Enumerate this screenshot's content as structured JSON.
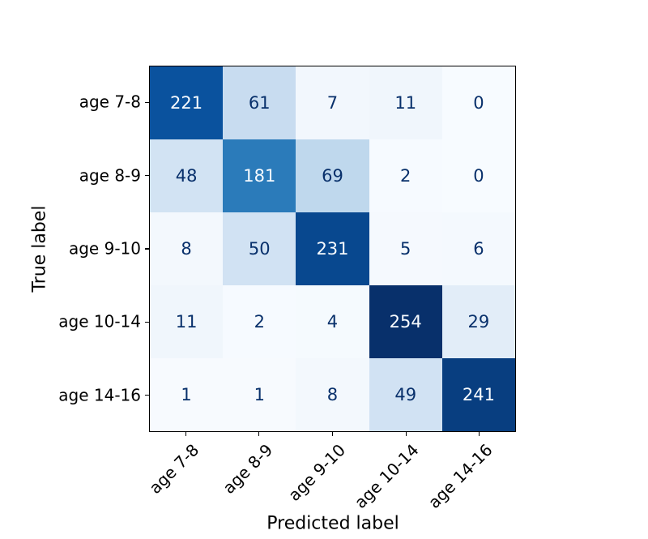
{
  "figure": {
    "background": "#ffffff",
    "border_color": "#000000",
    "tick_color": "#000000"
  },
  "chart_data": {
    "type": "heatmap",
    "subtype": "confusion-matrix",
    "title": "",
    "xlabel": "Predicted label",
    "ylabel": "True label",
    "x_ticklabels": [
      "age 7-8",
      "age 8-9",
      "age 9-10",
      "age 10-14",
      "age 14-16"
    ],
    "y_ticklabels": [
      "age 7-8",
      "age 8-9",
      "age 9-10",
      "age 10-14",
      "age 14-16"
    ],
    "x_tick_rotation_deg": 45,
    "matrix": [
      [
        221,
        61,
        7,
        11,
        0
      ],
      [
        48,
        181,
        69,
        2,
        0
      ],
      [
        8,
        50,
        231,
        5,
        6
      ],
      [
        11,
        2,
        4,
        254,
        29
      ],
      [
        1,
        1,
        8,
        49,
        241
      ]
    ],
    "colormap": "Blues",
    "vmin": 0,
    "vmax": 254,
    "cell_colors": [
      [
        "#0a529e",
        "#c8dcf0",
        "#f2f7fd",
        "#f0f6fc",
        "#f7fbff"
      ],
      [
        "#d2e3f3",
        "#2b7bba",
        "#bfd8ed",
        "#f6faff",
        "#f7fbff"
      ],
      [
        "#f3f8fd",
        "#d1e2f3",
        "#08488f",
        "#f5f9fe",
        "#f4f9fe"
      ],
      [
        "#f0f6fc",
        "#f6faff",
        "#f5fafe",
        "#08306b",
        "#e2edf8"
      ],
      [
        "#f7fafe",
        "#f7fafe",
        "#f3f8fd",
        "#d1e2f3",
        "#083e80"
      ]
    ],
    "text_color_dark_cells": "#f7fbff",
    "text_color_light_cells": "#08306b",
    "text_threshold": 127,
    "grid": false,
    "legend": "none"
  },
  "layout_note": ""
}
